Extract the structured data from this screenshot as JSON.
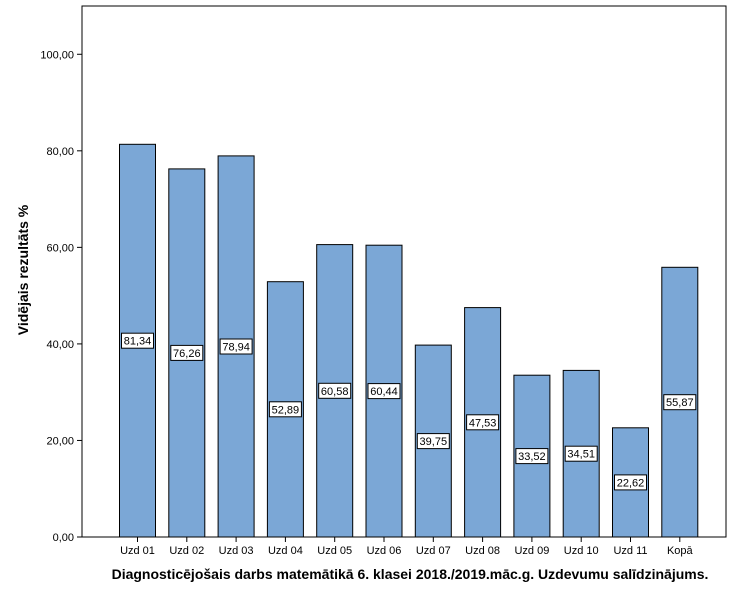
{
  "chart_data": {
    "type": "bar",
    "categories": [
      "Uzd 01",
      "Uzd 02",
      "Uzd 03",
      "Uzd 04",
      "Uzd 05",
      "Uzd 06",
      "Uzd 07",
      "Uzd 08",
      "Uzd 09",
      "Uzd 10",
      "Uzd 11",
      "Kopā"
    ],
    "values": [
      81.34,
      76.26,
      78.94,
      52.89,
      60.58,
      60.44,
      39.75,
      47.53,
      33.52,
      34.51,
      22.62,
      55.87
    ],
    "value_labels": [
      "81,34",
      "76,26",
      "78,94",
      "52,89",
      "60,58",
      "60,44",
      "39,75",
      "47,53",
      "33,52",
      "34,51",
      "22,62",
      "55,87"
    ],
    "xlabel": "Diagnosticējošais darbs matemātikā 6. klasei 2018./2019.māc.g. Uzdevumu salīdzinājums.",
    "ylabel": "Vidējais rezultāts %",
    "ylim": [
      0,
      110
    ],
    "yticks": [
      0,
      20,
      40,
      60,
      80,
      100
    ],
    "ytick_labels": [
      "0,00",
      "20,00",
      "40,00",
      "60,00",
      "80,00",
      "100,00"
    ],
    "grid": false,
    "bar_color": "#7ba7d6",
    "bar_edge_color": "#000000"
  }
}
